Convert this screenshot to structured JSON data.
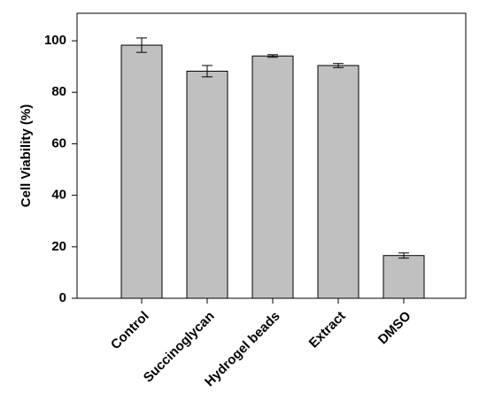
{
  "chart_data": {
    "type": "bar",
    "y_label": "Cell Viability (%)",
    "categories": [
      "Control",
      "Succinoglycan",
      "Hydrogel beads",
      "Extract",
      "DMSO"
    ],
    "values": [
      98.3,
      88.2,
      94.1,
      90.4,
      16.6
    ],
    "errors": [
      2.8,
      2.2,
      0.5,
      0.8,
      1.0
    ],
    "color": "#c0c0c0",
    "ylim": [
      0,
      110
    ],
    "yticks": [
      0,
      20,
      40,
      60,
      80,
      100
    ]
  }
}
